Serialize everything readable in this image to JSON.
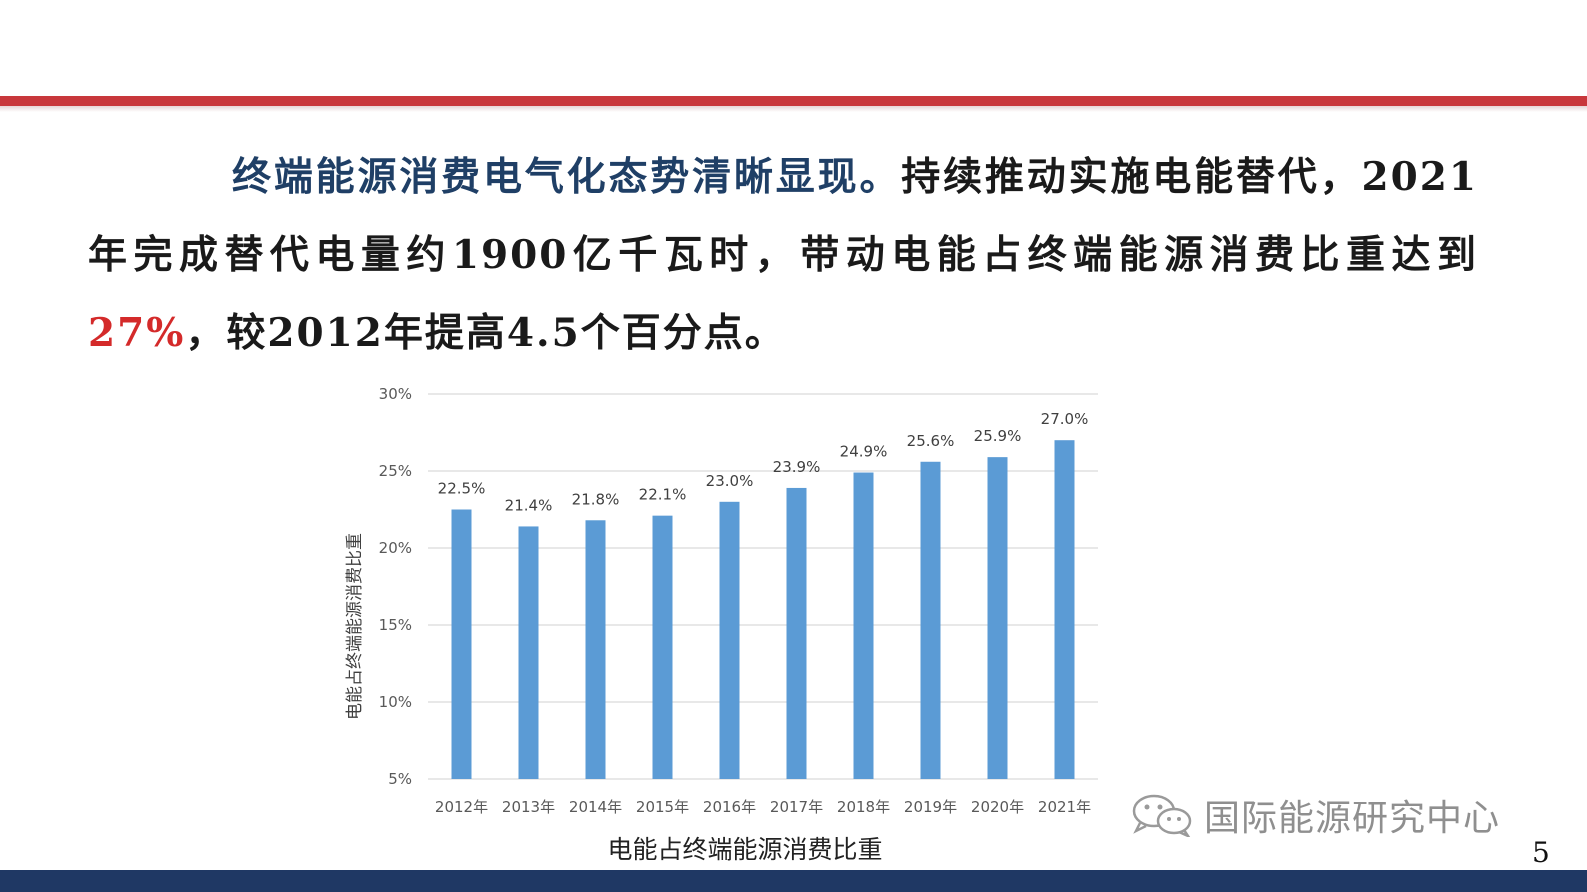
{
  "slide": {
    "paragraph_lead": "终端能源消费电气化态势清晰显现。",
    "paragraph_body": "持续推动实施电能替代，2021年完成替代电量约1900亿千瓦时，带动电能占终端能源消费比重达到",
    "paragraph_highlight": "27%",
    "paragraph_tail": "，较2012年提高4.5个百分点。",
    "page_number": "5",
    "stripe_color": "#c8373b",
    "footer_color": "#1f3864"
  },
  "watermark": {
    "text": "国际能源研究中心",
    "icon": "wechat-icon"
  },
  "chart_data": {
    "type": "bar",
    "categories": [
      "2012年",
      "2013年",
      "2014年",
      "2015年",
      "2016年",
      "2017年",
      "2018年",
      "2019年",
      "2020年",
      "2021年"
    ],
    "values": [
      22.5,
      21.4,
      21.8,
      22.1,
      23.0,
      23.9,
      24.9,
      25.6,
      25.9,
      27.0
    ],
    "data_labels": [
      "22.5%",
      "21.4%",
      "21.8%",
      "22.1%",
      "23.0%",
      "23.9%",
      "24.9%",
      "25.6%",
      "25.9%",
      "27.0%"
    ],
    "ylabel": "电能占终端能源消费比重",
    "xlabel": "电能占终端能源消费比重",
    "ylim": [
      5,
      30
    ],
    "yticks": [
      5,
      10,
      15,
      20,
      25,
      30
    ],
    "ytick_labels": [
      "5%",
      "10%",
      "15%",
      "20%",
      "25%",
      "30%"
    ],
    "bar_color": "#5b9bd5",
    "grid": true
  }
}
